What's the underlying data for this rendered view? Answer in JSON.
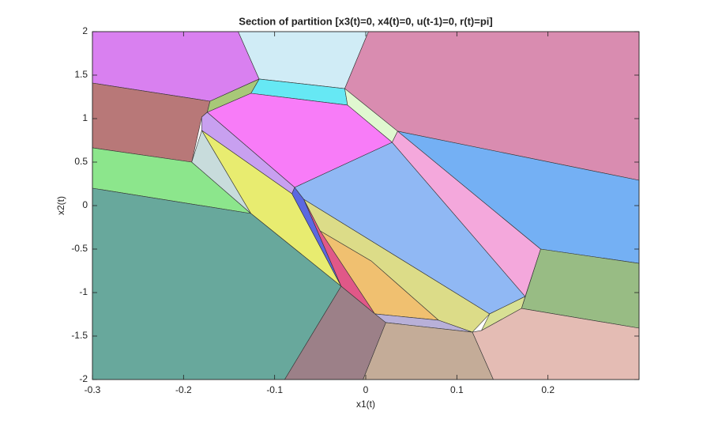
{
  "chart_data": {
    "type": "polygon",
    "title": "Section of partition [x3(t)=0, x4(t)=0, u(t-1)=0, r(t)=pi]",
    "xlabel": "x1(t)",
    "ylabel": "x2(t)",
    "xlim": [
      -0.3,
      0.3
    ],
    "ylim": [
      -2,
      2
    ],
    "xticks": [
      -0.3,
      -0.2,
      -0.1,
      0,
      0.1,
      0.2
    ],
    "yticks": [
      -2,
      -1.5,
      -1,
      -0.5,
      0,
      0.5,
      1,
      1.5,
      2
    ],
    "polygons": [
      {
        "color": "#D980F0",
        "x": [
          -0.3,
          -0.14,
          -0.117,
          -0.171,
          -0.3
        ],
        "y": [
          2,
          2,
          1.455,
          1.2,
          1.409
        ]
      },
      {
        "color": "#D0ECF6",
        "x": [
          -0.14,
          0.003,
          -0.023,
          -0.117
        ],
        "y": [
          2,
          2,
          1.345,
          1.455
        ]
      },
      {
        "color": "#66E8F4",
        "x": [
          -0.117,
          -0.023,
          -0.02,
          -0.126
        ],
        "y": [
          1.455,
          1.345,
          1.155,
          1.291
        ]
      },
      {
        "color": "#A8C878",
        "x": [
          -0.171,
          -0.117,
          -0.126,
          -0.174
        ],
        "y": [
          1.2,
          1.455,
          1.291,
          1.073
        ]
      },
      {
        "color": "#D98CB0",
        "x": [
          0.003,
          0.3,
          0.3,
          0.035,
          -0.023
        ],
        "y": [
          2,
          2,
          0.291,
          0.855,
          1.345
        ]
      },
      {
        "color": "#E0F8D0",
        "x": [
          -0.023,
          0.035,
          0.029,
          -0.02
        ],
        "y": [
          1.345,
          0.855,
          0.727,
          1.155
        ]
      },
      {
        "color": "#F87CF8",
        "x": [
          -0.174,
          -0.126,
          -0.02,
          0.029,
          -0.078
        ],
        "y": [
          1.073,
          1.291,
          1.155,
          0.727,
          0.209
        ]
      },
      {
        "color": "#B87878",
        "x": [
          -0.3,
          -0.171,
          -0.174,
          -0.18,
          -0.191,
          -0.3
        ],
        "y": [
          1.409,
          1.2,
          1.073,
          1.018,
          0.5,
          0.664
        ]
      },
      {
        "color": "#8CE68C",
        "x": [
          -0.3,
          -0.191,
          -0.126,
          -0.3
        ],
        "y": [
          0.664,
          0.5,
          -0.091,
          0.2
        ]
      },
      {
        "color": "#C8DCDC",
        "x": [
          -0.18,
          -0.191,
          -0.126
        ],
        "y": [
          0.864,
          0.5,
          -0.091
        ]
      },
      {
        "color": "#C8A0F0",
        "x": [
          -0.174,
          -0.078,
          -0.081,
          -0.18,
          -0.18
        ],
        "y": [
          1.073,
          0.209,
          0.136,
          0.864,
          1.018
        ]
      },
      {
        "color": "#E8EC70",
        "x": [
          -0.18,
          -0.081,
          -0.027,
          -0.126
        ],
        "y": [
          0.864,
          0.136,
          -0.927,
          -0.091
        ]
      },
      {
        "color": "#68A89C",
        "x": [
          -0.3,
          -0.126,
          -0.027,
          -0.089,
          -0.3
        ],
        "y": [
          0.2,
          -0.091,
          -0.927,
          -2,
          -2
        ]
      },
      {
        "color": "#5C68E0",
        "x": [
          -0.078,
          -0.068,
          -0.027,
          -0.081
        ],
        "y": [
          0.209,
          0.073,
          -0.927,
          0.136
        ]
      },
      {
        "color": "#E05888",
        "x": [
          -0.068,
          -0.05,
          0.01,
          -0.027
        ],
        "y": [
          0.073,
          -0.291,
          -1.245,
          -0.927
        ]
      },
      {
        "color": "#F0C070",
        "x": [
          -0.05,
          0.006,
          0.08,
          0.01
        ],
        "y": [
          -0.291,
          -0.636,
          -1.318,
          -1.245
        ]
      },
      {
        "color": "#DCDC88",
        "x": [
          -0.068,
          0.136,
          0.117,
          0.08,
          0.006,
          -0.05
        ],
        "y": [
          0.073,
          -1.245,
          -1.455,
          -1.318,
          -0.636,
          -0.291
        ]
      },
      {
        "color": "#90B8F4",
        "x": [
          -0.078,
          0.029,
          0.175,
          0.136,
          -0.068
        ],
        "y": [
          0.209,
          0.727,
          -1.045,
          -1.245,
          0.073
        ]
      },
      {
        "color": "#B8B0D8",
        "x": [
          0.01,
          0.08,
          0.117,
          0.022
        ],
        "y": [
          -1.245,
          -1.318,
          -1.455,
          -1.345
        ]
      },
      {
        "color": "#F4A8DC",
        "x": [
          0.029,
          0.035,
          0.192,
          0.175
        ],
        "y": [
          0.727,
          0.855,
          -0.5,
          -1.045
        ]
      },
      {
        "color": "#74B0F4",
        "x": [
          0.035,
          0.3,
          0.3,
          0.192
        ],
        "y": [
          0.855,
          0.291,
          -0.664,
          -0.5
        ]
      },
      {
        "color": "#98BC84",
        "x": [
          0.192,
          0.3,
          0.3,
          0.171
        ],
        "y": [
          -0.5,
          -0.664,
          -1.409,
          -1.182
        ]
      },
      {
        "color": "#D8E094",
        "x": [
          0.136,
          0.175,
          0.171,
          0.127
        ],
        "y": [
          -1.245,
          -1.045,
          -1.182,
          -1.436
        ]
      },
      {
        "color": "#E4BCB4",
        "x": [
          0.117,
          0.127,
          0.171,
          0.3,
          0.3,
          0.14
        ],
        "y": [
          -1.455,
          -1.436,
          -1.182,
          -1.409,
          -2,
          -2
        ]
      },
      {
        "color": "#C4AC98",
        "x": [
          0.022,
          0.117,
          0.14,
          -0.003
        ],
        "y": [
          -1.345,
          -1.455,
          -2,
          -2
        ]
      },
      {
        "color": "#9C8088",
        "x": [
          -0.027,
          0.01,
          0.022,
          -0.003,
          -0.089
        ],
        "y": [
          -0.927,
          -1.245,
          -1.345,
          -2,
          -2
        ]
      }
    ]
  }
}
